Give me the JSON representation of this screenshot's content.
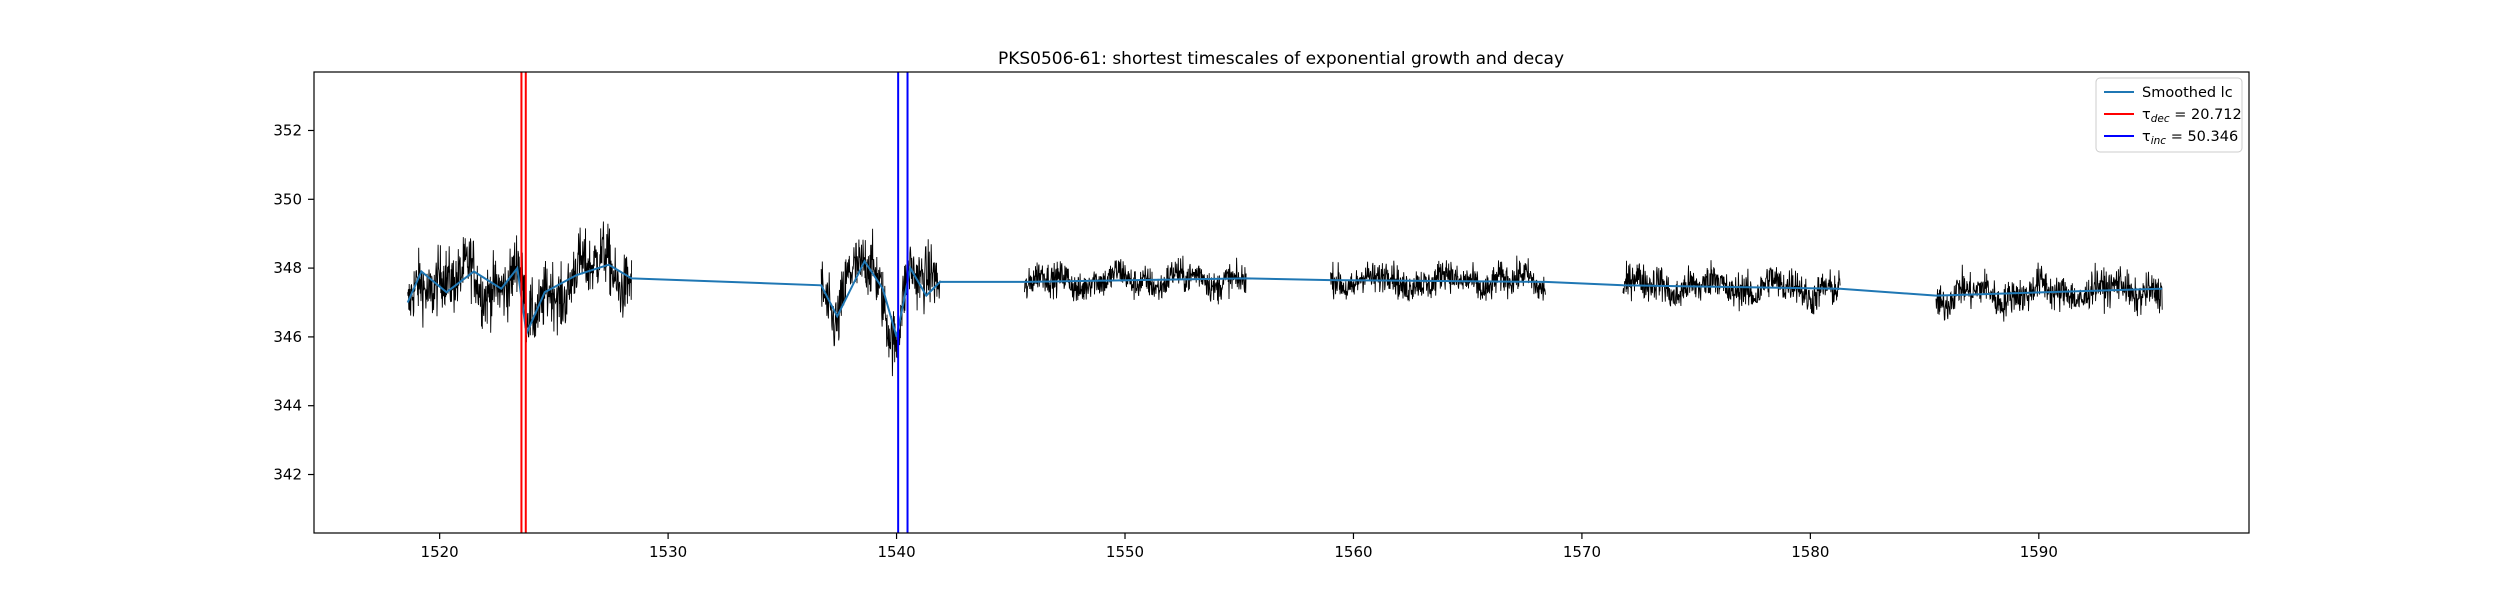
{
  "chart_data": {
    "type": "line",
    "title": "PKS0506-61: shortest timescales of exponential growth and decay",
    "xlabel": "",
    "ylabel": "",
    "xlim": [
      1514.5,
      1599.2
    ],
    "ylim": [
      340.3,
      353.7
    ],
    "xticks": [
      1520,
      1530,
      1540,
      1550,
      1560,
      1570,
      1580,
      1590
    ],
    "yticks": [
      342,
      344,
      346,
      348,
      350,
      352
    ],
    "grid": false,
    "legend_position": "top-right",
    "colors": {
      "raw": "#000000",
      "smoothed": "#1f77b4",
      "tau_dec": "#ff0000",
      "tau_inc": "#0000ff"
    },
    "segments": [
      {
        "x_start": 1518.6,
        "x_end": 1528.4,
        "base": 347.5,
        "noise": 0.9
      },
      {
        "x_start": 1536.7,
        "x_end": 1541.9,
        "base": 347.4,
        "noise": 0.9
      },
      {
        "x_start": 1545.6,
        "x_end": 1555.3,
        "base": 347.55,
        "noise": 0.45
      },
      {
        "x_start": 1559.0,
        "x_end": 1568.4,
        "base": 347.5,
        "noise": 0.45
      },
      {
        "x_start": 1571.8,
        "x_end": 1581.3,
        "base": 347.35,
        "noise": 0.5
      },
      {
        "x_start": 1585.5,
        "x_end": 1595.4,
        "base": 347.3,
        "noise": 0.5
      }
    ],
    "smoothed_anchor_points": [
      {
        "x": 1518.6,
        "y": 347.0
      },
      {
        "x": 1519.2,
        "y": 347.9
      },
      {
        "x": 1520.3,
        "y": 347.3
      },
      {
        "x": 1521.5,
        "y": 347.9
      },
      {
        "x": 1522.7,
        "y": 347.4
      },
      {
        "x": 1523.4,
        "y": 348.0
      },
      {
        "x": 1523.8,
        "y": 346.1
      },
      {
        "x": 1524.6,
        "y": 347.3
      },
      {
        "x": 1526.0,
        "y": 347.8
      },
      {
        "x": 1527.4,
        "y": 348.1
      },
      {
        "x": 1528.4,
        "y": 347.7
      },
      {
        "x": 1536.7,
        "y": 347.5
      },
      {
        "x": 1537.4,
        "y": 346.6
      },
      {
        "x": 1538.6,
        "y": 348.2
      },
      {
        "x": 1539.4,
        "y": 347.4
      },
      {
        "x": 1540.0,
        "y": 346.0
      },
      {
        "x": 1540.6,
        "y": 348.0
      },
      {
        "x": 1541.3,
        "y": 347.2
      },
      {
        "x": 1541.9,
        "y": 347.6
      },
      {
        "x": 1545.6,
        "y": 347.6
      },
      {
        "x": 1555.3,
        "y": 347.7
      },
      {
        "x": 1559.0,
        "y": 347.65
      },
      {
        "x": 1568.4,
        "y": 347.6
      },
      {
        "x": 1571.8,
        "y": 347.5
      },
      {
        "x": 1581.3,
        "y": 347.4
      },
      {
        "x": 1585.5,
        "y": 347.2
      },
      {
        "x": 1595.4,
        "y": 347.4
      }
    ],
    "vertical_lines": [
      {
        "x": 1523.58,
        "series": "tau_dec"
      },
      {
        "x": 1523.77,
        "series": "tau_dec"
      },
      {
        "x": 1540.07,
        "series": "tau_inc"
      },
      {
        "x": 1540.48,
        "series": "tau_inc"
      }
    ],
    "legend": [
      {
        "key": "smoothed",
        "label": "Smoothed lc"
      },
      {
        "key": "tau_dec",
        "label_symbol": "τ",
        "label_sub": "dec",
        "label_value": " = 20.712"
      },
      {
        "key": "tau_inc",
        "label_symbol": "τ",
        "label_sub": "inc",
        "label_value": " = 50.346"
      }
    ]
  }
}
